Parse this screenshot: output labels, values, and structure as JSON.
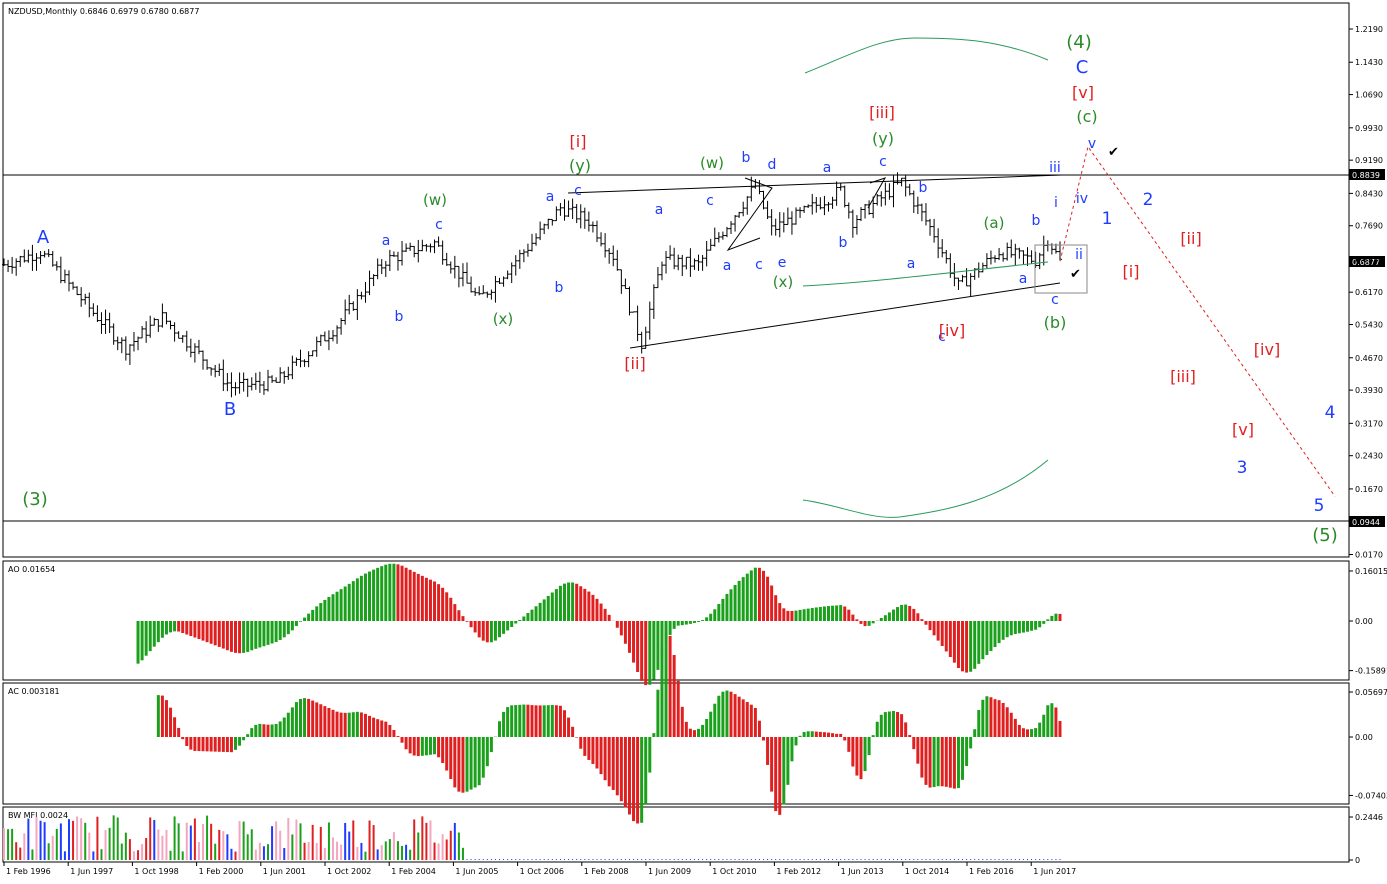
{
  "main": {
    "title": "NZDUSD,Monthly  0.6846 0.6979 0.6780 0.6877",
    "y_ticks": [
      "1.2190",
      "1.1430",
      "1.0690",
      "0.9930",
      "0.9190",
      "0.8430",
      "0.7690",
      "0.6930",
      "0.6170",
      "0.5430",
      "0.4670",
      "0.3930",
      "0.3170",
      "0.2430",
      "0.1670",
      "0.0170"
    ],
    "price_tags": {
      "upper": "0.8839",
      "current": "0.6877",
      "lower": "0.0944"
    }
  },
  "ao": {
    "title": "AO 0.01654",
    "ticks": [
      "0.16015",
      "0.00",
      "-0.15891"
    ]
  },
  "ac": {
    "title": "AC 0.003181",
    "ticks": [
      "0.056973",
      "0.00",
      "-0.07403"
    ]
  },
  "mfi": {
    "title": "BW MFI 0.0024",
    "ticks": [
      "0.2446",
      "0"
    ]
  },
  "x_ticks": [
    "1 Feb 1996",
    "1 Jun 1997",
    "1 Oct 1998",
    "1 Feb 2000",
    "1 Jun 2001",
    "1 Oct 2002",
    "1 Feb 2004",
    "1 Jun 2005",
    "1 Oct 2006",
    "1 Feb 2008",
    "1 Jun 2009",
    "1 Oct 2010",
    "1 Feb 2012",
    "1 Jun 2013",
    "1 Oct 2014",
    "1 Feb 2016",
    "1 Jun 2017"
  ],
  "wave_labels": [
    {
      "t": "A",
      "c": "blue"
    },
    {
      "t": "B",
      "c": "blue"
    },
    {
      "t": "(3)",
      "c": "green"
    },
    {
      "t": "a",
      "c": "blue"
    },
    {
      "t": "b",
      "c": "blue"
    },
    {
      "t": "(w)",
      "c": "green"
    },
    {
      "t": "c",
      "c": "blue"
    },
    {
      "t": "(x)",
      "c": "green"
    },
    {
      "t": "a",
      "c": "blue"
    },
    {
      "t": "b",
      "c": "blue"
    },
    {
      "t": "c",
      "c": "blue"
    },
    {
      "t": "(y)",
      "c": "green"
    },
    {
      "t": "[i]",
      "c": "red"
    },
    {
      "t": "[ii]",
      "c": "red"
    },
    {
      "t": "a",
      "c": "blue"
    },
    {
      "t": "c",
      "c": "blue"
    },
    {
      "t": "(w)",
      "c": "green"
    },
    {
      "t": "a",
      "c": "blue"
    },
    {
      "t": "b",
      "c": "blue"
    },
    {
      "t": "c",
      "c": "blue"
    },
    {
      "t": "d",
      "c": "blue"
    },
    {
      "t": "e",
      "c": "blue"
    },
    {
      "t": "(x)",
      "c": "green"
    },
    {
      "t": "a",
      "c": "blue"
    },
    {
      "t": "b",
      "c": "blue"
    },
    {
      "t": "c",
      "c": "blue"
    },
    {
      "t": "(y)",
      "c": "green"
    },
    {
      "t": "[iii]",
      "c": "red"
    },
    {
      "t": "b",
      "c": "blue"
    },
    {
      "t": "a",
      "c": "blue"
    },
    {
      "t": "c",
      "c": "blue"
    },
    {
      "t": "[iv]",
      "c": "red"
    },
    {
      "t": "(a)",
      "c": "green"
    },
    {
      "t": "a",
      "c": "blue"
    },
    {
      "t": "b",
      "c": "blue"
    },
    {
      "t": "c",
      "c": "blue"
    },
    {
      "t": "(b)",
      "c": "green"
    },
    {
      "t": "i",
      "c": "blue"
    },
    {
      "t": "ii",
      "c": "blue"
    },
    {
      "t": "iii",
      "c": "blue"
    },
    {
      "t": "iv",
      "c": "blue"
    },
    {
      "t": "v",
      "c": "blue"
    },
    {
      "t": "(c)",
      "c": "green"
    },
    {
      "t": "[v]",
      "c": "red"
    },
    {
      "t": "C",
      "c": "blue"
    },
    {
      "t": "(4)",
      "c": "green"
    },
    {
      "t": "1",
      "c": "blue"
    },
    {
      "t": "2",
      "c": "blue"
    },
    {
      "t": "[i]",
      "c": "red"
    },
    {
      "t": "[ii]",
      "c": "red"
    },
    {
      "t": "[iii]",
      "c": "red"
    },
    {
      "t": "[iv]",
      "c": "red"
    },
    {
      "t": "[v]",
      "c": "red"
    },
    {
      "t": "3",
      "c": "blue"
    },
    {
      "t": "4",
      "c": "blue"
    },
    {
      "t": "5",
      "c": "blue"
    },
    {
      "t": "(5)",
      "c": "green"
    }
  ],
  "colors": {
    "blue": "#1e3cff",
    "green": "#2a8a2a",
    "red": "#e02020",
    "bars": "#000000",
    "ind_up": "#1aa01a",
    "ind_down": "#e02020",
    "forecast": "#e02020",
    "band": "#2a9a5a"
  },
  "chart_data": {
    "type": "ohlc",
    "title": "NZDUSD,Monthly",
    "last": {
      "open": 0.6846,
      "high": 0.6979,
      "low": 0.678,
      "close": 0.6877
    },
    "x_range": [
      "1996-02",
      "2017-10"
    ],
    "ylim": [
      0.0,
      1.25
    ],
    "price_anchors": [
      {
        "date": "1996-02",
        "price": 0.68
      },
      {
        "date": "1996-11",
        "price": 0.71
      },
      {
        "date": "1997-12",
        "price": 0.57
      },
      {
        "date": "1998-08",
        "price": 0.49
      },
      {
        "date": "1999-05",
        "price": 0.56
      },
      {
        "date": "2000-10",
        "price": 0.4
      },
      {
        "date": "2001-09",
        "price": 0.41
      },
      {
        "date": "2002-12",
        "price": 0.54
      },
      {
        "date": "2003-12",
        "price": 0.69
      },
      {
        "date": "2004-12",
        "price": 0.73
      },
      {
        "date": "2005-11",
        "price": 0.6
      },
      {
        "date": "2006-12",
        "price": 0.73
      },
      {
        "date": "2007-07",
        "price": 0.81
      },
      {
        "date": "2008-02",
        "price": 0.78
      },
      {
        "date": "2008-08",
        "price": 0.7
      },
      {
        "date": "2009-03",
        "price": 0.5
      },
      {
        "date": "2009-08",
        "price": 0.69
      },
      {
        "date": "2010-05",
        "price": 0.68
      },
      {
        "date": "2011-07",
        "price": 0.86
      },
      {
        "date": "2011-11",
        "price": 0.76
      },
      {
        "date": "2012-07",
        "price": 0.8
      },
      {
        "date": "2013-04",
        "price": 0.85
      },
      {
        "date": "2013-07",
        "price": 0.78
      },
      {
        "date": "2014-07",
        "price": 0.87
      },
      {
        "date": "2015-03",
        "price": 0.75
      },
      {
        "date": "2015-09",
        "price": 0.63
      },
      {
        "date": "2016-07",
        "price": 0.71
      },
      {
        "date": "2017-04",
        "price": 0.69
      },
      {
        "date": "2017-07",
        "price": 0.74
      },
      {
        "date": "2017-10",
        "price": 0.6877
      }
    ],
    "forecast_path": [
      {
        "date": "2017-10",
        "price": 0.6877
      },
      {
        "date": "2018-06",
        "price": 0.95
      },
      {
        "date": "2021-06",
        "price": 0.15
      }
    ],
    "ao_last": 0.01654,
    "ac_last": 0.003181,
    "mfi_last": 0.0024
  }
}
